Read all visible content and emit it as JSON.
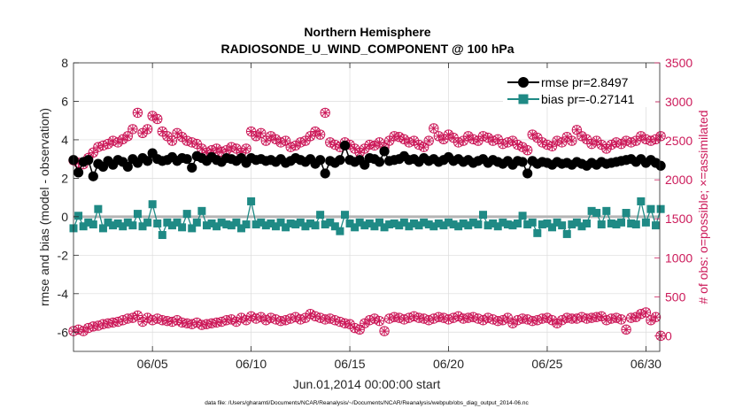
{
  "chart_data": {
    "type": "line",
    "title": "Northern Hemisphere",
    "subtitle": "RADIOSONDE_U_WIND_COMPONENT @ 100 hPa",
    "xlabel": "Jun.01,2014 00:00:00 start",
    "ylabel": "rmse and bias (model - observation)",
    "y2label": "# of obs: o=possible; ×=assimilated",
    "footnote": "data file: /Users/gharamti/Documents/NCAR/Reanalysis/~/Documents/NCAR/Reanalysis/webpub/obs_diag_output_2014-06.nc",
    "xlim": [
      1.0,
      30.7
    ],
    "ylim": [
      -7,
      8
    ],
    "y2lim": [
      -200,
      3500
    ],
    "x_ticks": [
      5,
      10,
      15,
      20,
      25,
      30
    ],
    "x_tick_labels": [
      "06/05",
      "06/10",
      "06/15",
      "06/20",
      "06/25",
      "06/30"
    ],
    "y_ticks": [
      -6,
      -4,
      -2,
      0,
      2,
      4,
      6,
      8
    ],
    "y2_ticks": [
      0,
      500,
      1000,
      1500,
      2000,
      2500,
      3000,
      3500
    ],
    "legend": [
      "rmse pr=2.8497",
      "bias pr=-0.27141"
    ],
    "legend_location": "top-right",
    "grid": true,
    "x": [
      1.0,
      1.25,
      1.5,
      1.75,
      2.0,
      2.25,
      2.5,
      2.75,
      3.0,
      3.25,
      3.5,
      3.75,
      4.0,
      4.25,
      4.5,
      4.75,
      5.0,
      5.25,
      5.5,
      5.75,
      6.0,
      6.25,
      6.5,
      6.75,
      7.0,
      7.25,
      7.5,
      7.75,
      8.0,
      8.25,
      8.5,
      8.75,
      9.0,
      9.25,
      9.5,
      9.75,
      10.0,
      10.25,
      10.5,
      10.75,
      11.0,
      11.25,
      11.5,
      11.75,
      12.0,
      12.25,
      12.5,
      12.75,
      13.0,
      13.25,
      13.5,
      13.75,
      14.0,
      14.25,
      14.5,
      14.75,
      15.0,
      15.25,
      15.5,
      15.75,
      16.0,
      16.25,
      16.5,
      16.75,
      17.0,
      17.25,
      17.5,
      17.75,
      18.0,
      18.25,
      18.5,
      18.75,
      19.0,
      19.25,
      19.5,
      19.75,
      20.0,
      20.25,
      20.5,
      20.75,
      21.0,
      21.25,
      21.5,
      21.75,
      22.0,
      22.25,
      22.5,
      22.75,
      23.0,
      23.25,
      23.5,
      23.75,
      24.0,
      24.25,
      24.5,
      24.75,
      25.0,
      25.25,
      25.5,
      25.75,
      26.0,
      26.25,
      26.5,
      26.75,
      27.0,
      27.25,
      27.5,
      27.75,
      28.0,
      28.25,
      28.5,
      28.75,
      29.0,
      29.25,
      29.5,
      29.75,
      30.0,
      30.25,
      30.5,
      30.75
    ],
    "series": [
      {
        "name": "rmse",
        "axis": "left",
        "color": "#000000",
        "marker": "circle",
        "values": [
          2.95,
          2.3,
          2.85,
          2.95,
          2.1,
          2.75,
          2.6,
          2.9,
          2.7,
          2.95,
          2.85,
          2.6,
          3.0,
          2.8,
          3.05,
          2.9,
          3.3,
          3.0,
          2.9,
          2.95,
          3.1,
          2.9,
          3.05,
          3.0,
          2.55,
          3.15,
          3.05,
          2.9,
          3.1,
          2.95,
          2.85,
          3.05,
          3.0,
          2.9,
          3.05,
          2.8,
          3.05,
          2.95,
          3.0,
          2.9,
          2.95,
          2.85,
          3.0,
          2.8,
          2.9,
          3.05,
          2.95,
          2.85,
          3.0,
          2.75,
          2.95,
          2.25,
          2.9,
          2.8,
          2.95,
          3.7,
          2.95,
          2.85,
          2.95,
          2.7,
          3.05,
          3.0,
          2.85,
          3.4,
          2.9,
          2.95,
          3.0,
          3.15,
          2.95,
          3.0,
          2.85,
          3.05,
          2.9,
          3.0,
          2.85,
          2.95,
          3.1,
          2.9,
          3.0,
          2.85,
          2.95,
          2.8,
          2.9,
          3.0,
          2.8,
          2.95,
          2.85,
          2.75,
          2.9,
          2.7,
          2.9,
          2.85,
          2.25,
          2.9,
          2.75,
          2.85,
          2.8,
          2.7,
          2.85,
          2.75,
          2.8,
          2.7,
          2.85,
          2.75,
          2.65,
          2.8,
          2.7,
          2.85,
          2.75,
          2.8,
          2.85,
          2.9,
          2.95,
          3.0,
          2.85,
          3.0,
          2.8,
          2.95,
          2.8,
          2.65
        ]
      },
      {
        "name": "bias",
        "axis": "left",
        "color": "#1f8a85",
        "marker": "square",
        "values": [
          -0.6,
          0.05,
          -0.5,
          -0.3,
          -0.4,
          0.4,
          -0.6,
          -0.3,
          -0.45,
          -0.35,
          -0.5,
          -0.3,
          -0.45,
          0.15,
          -0.5,
          -0.3,
          0.65,
          -0.35,
          -0.95,
          -0.3,
          -0.45,
          -0.3,
          -0.55,
          0.15,
          -0.6,
          -0.3,
          0.3,
          -0.45,
          -0.35,
          -0.5,
          -0.3,
          -0.4,
          -0.45,
          -0.3,
          -0.6,
          -0.4,
          0.8,
          -0.4,
          -0.3,
          -0.45,
          -0.35,
          -0.5,
          -0.3,
          -0.55,
          -0.35,
          -0.4,
          -0.3,
          -0.5,
          -0.35,
          -0.45,
          0.1,
          -0.4,
          -0.3,
          -0.5,
          -0.75,
          0.1,
          -0.35,
          -0.55,
          -0.3,
          -0.45,
          -0.35,
          -0.5,
          -0.3,
          -0.55,
          -0.4,
          -0.35,
          -0.45,
          -0.3,
          -0.5,
          -0.35,
          -0.45,
          -0.3,
          -0.4,
          -0.5,
          -0.35,
          -0.45,
          -0.3,
          -0.4,
          -0.5,
          -0.35,
          -0.45,
          -0.3,
          -0.4,
          0.1,
          -0.45,
          -0.35,
          -0.5,
          -0.3,
          -0.4,
          -0.45,
          -0.35,
          0.05,
          -0.4,
          -0.3,
          -0.85,
          -0.4,
          -0.35,
          -0.55,
          -0.3,
          -0.45,
          -0.9,
          -0.4,
          -0.3,
          -0.5,
          -0.35,
          0.3,
          0.2,
          -0.4,
          0.3,
          -0.35,
          -0.4,
          -0.3,
          0.2,
          -0.35,
          -0.4,
          0.8,
          -0.3,
          0.4,
          -0.45,
          0.4
        ]
      },
      {
        "name": "possible",
        "axis": "right",
        "color": "#cc1a5a",
        "marker": "open-circle",
        "values": [
          2250,
          2220,
          2200,
          2280,
          2350,
          2420,
          2440,
          2460,
          2500,
          2480,
          2520,
          2560,
          2650,
          2860,
          2600,
          2650,
          2820,
          2780,
          2620,
          2560,
          2500,
          2600,
          2550,
          2500,
          2480,
          2460,
          2400,
          2350,
          2380,
          2400,
          2360,
          2380,
          2420,
          2400,
          2350,
          2400,
          2620,
          2560,
          2600,
          2500,
          2560,
          2520,
          2480,
          2500,
          2420,
          2440,
          2480,
          2500,
          2560,
          2620,
          2580,
          2860,
          2480,
          2450,
          2420,
          2480,
          2450,
          2400,
          2350,
          2400,
          2450,
          2440,
          2480,
          2420,
          2500,
          2560,
          2550,
          2520,
          2480,
          2500,
          2450,
          2420,
          2500,
          2660,
          2560,
          2520,
          2580,
          2540,
          2480,
          2500,
          2560,
          2520,
          2500,
          2560,
          2540,
          2500,
          2520,
          2460,
          2480,
          2500,
          2450,
          2420,
          2380,
          2580,
          2540,
          2480,
          2450,
          2430,
          2500,
          2480,
          2550,
          2500,
          2640,
          2560,
          2520,
          2460,
          2500,
          2450,
          2400,
          2450,
          2480,
          2460,
          2500,
          2480,
          2500,
          2560,
          2520,
          2500,
          2520,
          2560
        ]
      },
      {
        "name": "assimilated",
        "axis": "right",
        "color": "#cc1a5a",
        "marker": "x-cross",
        "values": [
          60,
          80,
          60,
          100,
          120,
          130,
          150,
          160,
          170,
          180,
          200,
          220,
          230,
          260,
          180,
          230,
          200,
          220,
          200,
          190,
          180,
          200,
          170,
          160,
          150,
          170,
          140,
          150,
          160,
          170,
          180,
          200,
          210,
          180,
          230,
          200,
          250,
          220,
          240,
          200,
          230,
          210,
          190,
          200,
          220,
          240,
          210,
          230,
          280,
          250,
          230,
          210,
          220,
          200,
          180,
          160,
          150,
          100,
          80,
          160,
          200,
          220,
          190,
          60,
          220,
          240,
          230,
          210,
          230,
          250,
          230,
          220,
          200,
          220,
          240,
          230,
          210,
          230,
          250,
          220,
          230,
          240,
          220,
          200,
          230,
          210,
          190,
          200,
          230,
          160,
          200,
          220,
          210,
          190,
          200,
          220,
          230,
          200,
          160,
          200,
          230,
          220,
          220,
          240,
          220,
          230,
          240,
          250,
          200,
          220,
          230,
          210,
          80,
          230,
          240,
          280,
          300,
          200,
          240,
          0
        ]
      }
    ]
  }
}
